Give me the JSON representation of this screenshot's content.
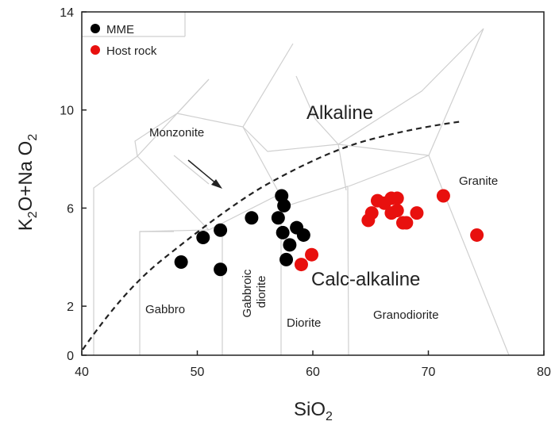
{
  "chart_data": {
    "type": "scatter",
    "title": "",
    "xlabel": "SiO2",
    "ylabel": "K2O+Na O2",
    "xlim": [
      40,
      80
    ],
    "ylim": [
      0,
      14
    ],
    "x_ticks": [
      "40",
      "50",
      "60",
      "70",
      "80"
    ],
    "y_ticks": [
      "0",
      "2",
      "6",
      "10",
      "14"
    ],
    "grid": false,
    "legend_position": "top-left",
    "series": [
      {
        "name": "MME",
        "color": "#000000",
        "points": [
          [
            48.6,
            3.8
          ],
          [
            50.5,
            4.8
          ],
          [
            52,
            3.5
          ],
          [
            52,
            5.1
          ],
          [
            54.7,
            5.6
          ],
          [
            57,
            5.6
          ],
          [
            57.3,
            6.5
          ],
          [
            57.5,
            6.1
          ],
          [
            57.4,
            5.0
          ],
          [
            57.7,
            3.9
          ],
          [
            58,
            4.5
          ],
          [
            58.6,
            5.2
          ],
          [
            59.2,
            4.9
          ]
        ]
      },
      {
        "name": "Host rock",
        "color": "#e8100e",
        "points": [
          [
            59,
            3.7
          ],
          [
            59.9,
            4.1
          ],
          [
            64.8,
            5.5
          ],
          [
            65.1,
            5.8
          ],
          [
            65.6,
            6.3
          ],
          [
            66.2,
            6.2
          ],
          [
            66.8,
            6.4
          ],
          [
            67.3,
            6.4
          ],
          [
            66.8,
            5.8
          ],
          [
            67.3,
            5.9
          ],
          [
            67.8,
            5.4
          ],
          [
            68.1,
            5.4
          ],
          [
            69,
            5.8
          ],
          [
            71.3,
            6.5
          ],
          [
            74.2,
            4.9
          ]
        ]
      }
    ],
    "annotations": {
      "fields": [
        "Monzonite",
        "Gabbro",
        "Gabbroic diorite",
        "Diorite",
        "Granodiorite",
        "Granite"
      ],
      "regions": [
        "Alkaline",
        "Calc-alkaline"
      ]
    }
  }
}
